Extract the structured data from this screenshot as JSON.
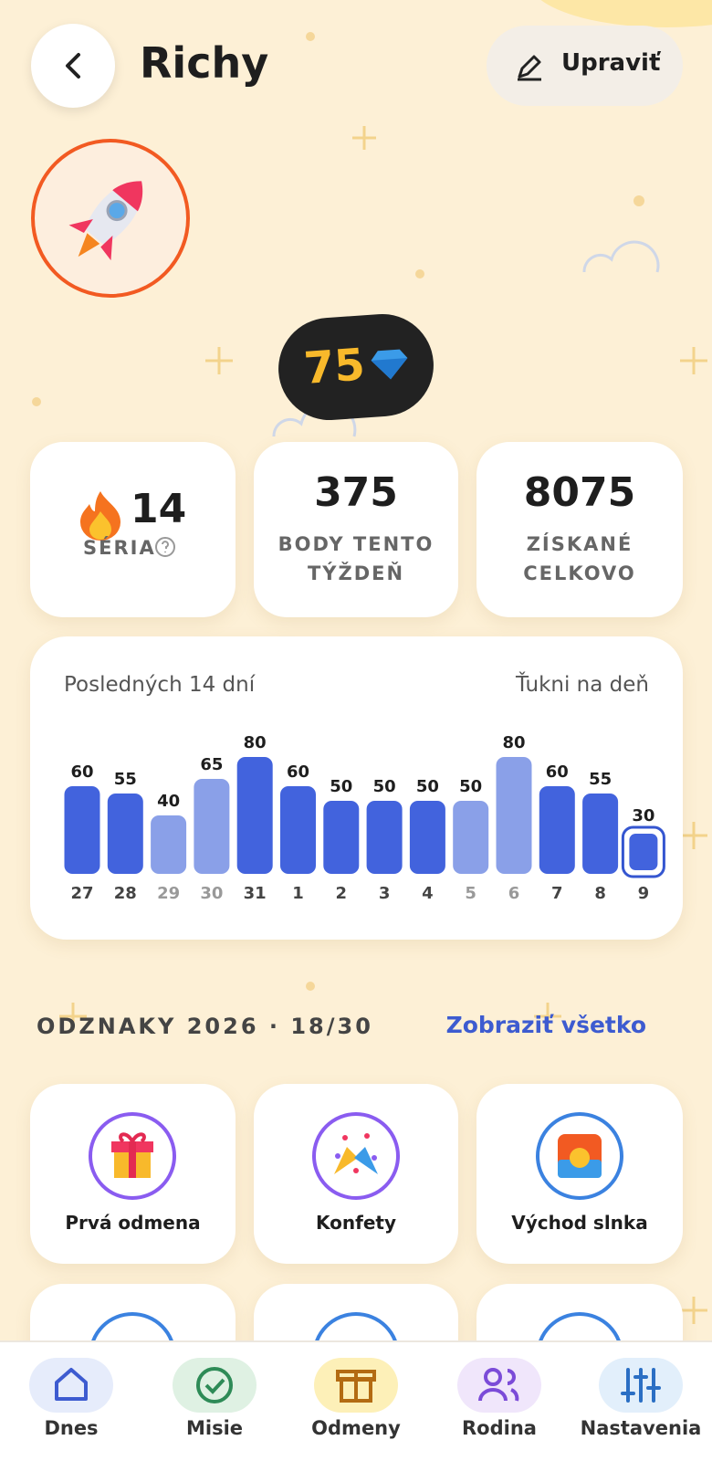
{
  "header": {
    "title": "Richy",
    "edit_button": "Upraviť"
  },
  "gems": 75,
  "stats": [
    {
      "value": 14,
      "label": "SÉRIA"
    },
    {
      "value": 375,
      "label": "BODY TENTO TÝŽDEŇ"
    },
    {
      "value": 8075,
      "label": "ZÍSKANÉ CELKOVO"
    }
  ],
  "activity": {
    "title": "Posledných 14 dní",
    "hint": "Ťukni na deň",
    "days": [
      27,
      28,
      29,
      30,
      31,
      1,
      2,
      3,
      4,
      5,
      6,
      7,
      8,
      9
    ],
    "values": [
      60,
      55,
      40,
      65,
      80,
      60,
      50,
      50,
      50,
      50,
      80,
      60,
      55,
      30
    ],
    "colors": [
      "#4263dd",
      "#4263dd",
      "#8aa0e8",
      "#8aa0e8",
      "#4263dd",
      "#4263dd",
      "#4263dd",
      "#4263dd",
      "#4263dd",
      "#8aa0e8",
      "#8aa0e8",
      "#4263dd",
      "#4263dd",
      "#4263dd"
    ],
    "selected_day": 9
  },
  "badges": {
    "title": "ODZNAKY 2026 · 18/30",
    "link": "Zobraziť všetko",
    "items": [
      {
        "label": "Prvá odmena"
      },
      {
        "label": "Konfety"
      },
      {
        "label": "Východ slnka"
      }
    ]
  },
  "nav": [
    "Dnes",
    "Misie",
    "Odmeny",
    "Rodina",
    "Nastavenia"
  ]
}
